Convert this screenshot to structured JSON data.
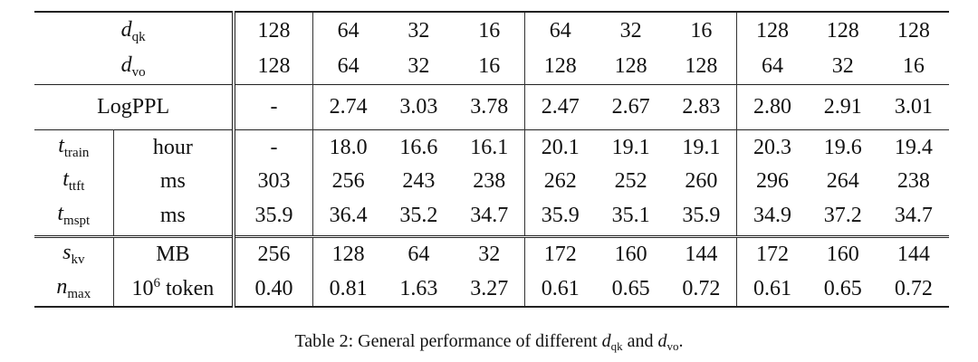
{
  "table": {
    "header_rows": [
      {
        "symbol": "d",
        "sub": "qk",
        "values": [
          "128",
          "64",
          "32",
          "16",
          "64",
          "32",
          "16",
          "128",
          "128",
          "128"
        ]
      },
      {
        "symbol": "d",
        "sub": "vo",
        "values": [
          "128",
          "64",
          "32",
          "16",
          "128",
          "128",
          "128",
          "64",
          "32",
          "16"
        ]
      }
    ],
    "logppl_row": {
      "label": "LogPPL",
      "values": [
        "-",
        "2.74",
        "3.03",
        "3.78",
        "2.47",
        "2.67",
        "2.83",
        "2.80",
        "2.91",
        "3.01"
      ]
    },
    "time_rows": [
      {
        "symbol": "t",
        "sub": "train",
        "unit": "hour",
        "values": [
          "-",
          "18.0",
          "16.6",
          "16.1",
          "20.1",
          "19.1",
          "19.1",
          "20.3",
          "19.6",
          "19.4"
        ]
      },
      {
        "symbol": "t",
        "sub": "ttft",
        "unit": "ms",
        "values": [
          "303",
          "256",
          "243",
          "238",
          "262",
          "252",
          "260",
          "296",
          "264",
          "238"
        ]
      },
      {
        "symbol": "t",
        "sub": "mspt",
        "unit": "ms",
        "values": [
          "35.9",
          "36.4",
          "35.2",
          "34.7",
          "35.9",
          "35.1",
          "35.9",
          "34.9",
          "37.2",
          "34.7"
        ]
      }
    ],
    "memory_rows": [
      {
        "symbol": "s",
        "sub": "kv",
        "unit": "MB",
        "values": [
          "256",
          "128",
          "64",
          "32",
          "172",
          "160",
          "144",
          "172",
          "160",
          "144"
        ]
      },
      {
        "symbol": "n",
        "sub": "max",
        "unit": "10",
        "unit_sup": "6",
        "unit_suffix": " token",
        "values": [
          "0.40",
          "0.81",
          "1.63",
          "3.27",
          "0.61",
          "0.65",
          "0.72",
          "0.61",
          "0.65",
          "0.72"
        ]
      }
    ]
  },
  "caption": {
    "prefix": "Table 2: General performance of different ",
    "sym1": "d",
    "sub1": "qk",
    "middle": " and ",
    "sym2": "d",
    "sub2": "vo",
    "suffix": "."
  }
}
